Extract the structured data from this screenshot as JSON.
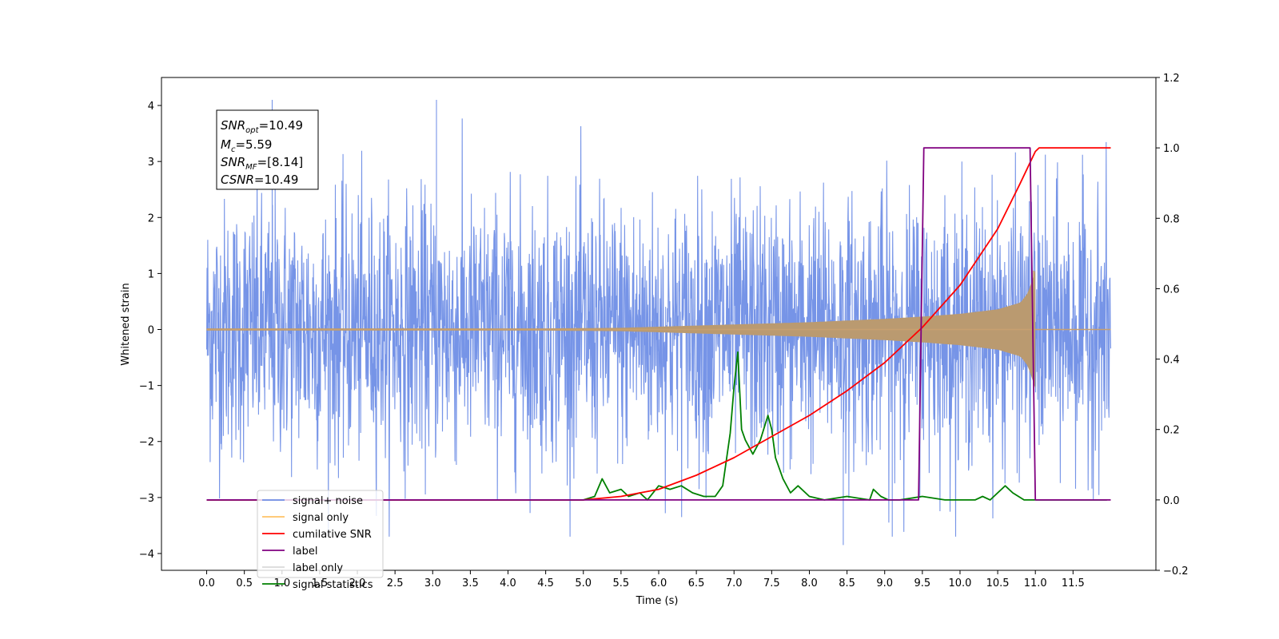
{
  "chart_data": {
    "type": "line",
    "title": "",
    "xlabel": "Time (s)",
    "ylabel_left": "Whitened strain",
    "ylabel_right": "",
    "xlim": [
      -0.6,
      12.6
    ],
    "ylim_left": [
      -4.3,
      4.5
    ],
    "ylim_right": [
      -0.2,
      1.2
    ],
    "x_ticks": [
      0.0,
      0.5,
      1.0,
      1.5,
      2.0,
      2.5,
      3.0,
      3.5,
      4.0,
      4.5,
      5.0,
      5.5,
      6.0,
      6.5,
      7.0,
      7.5,
      8.0,
      8.5,
      9.0,
      9.5,
      10.0,
      10.5,
      11.0,
      11.5
    ],
    "x_tick_labels": [
      "0.0",
      "0.5",
      "1.0",
      "1.5",
      "2.0",
      "2.5",
      "3.0",
      "3.5",
      "4.0",
      "4.5",
      "5.0",
      "5.5",
      "6.0",
      "6.5",
      "7.0",
      "7.5",
      "8.0",
      "8.5",
      "9.0",
      "9.5",
      "10.0",
      "10.5",
      "11.0",
      "11.5"
    ],
    "y_left_ticks": [
      4,
      3,
      2,
      1,
      0,
      -1,
      -2,
      -3,
      -4
    ],
    "y_left_tick_labels": [
      "4",
      "3",
      "2",
      "1",
      "0",
      "−1",
      "−2",
      "−3",
      "−4"
    ],
    "y_right_ticks": [
      1.2,
      1.0,
      0.8,
      0.6,
      0.4,
      0.2,
      0.0,
      -0.2
    ],
    "y_right_tick_labels": [
      "1.2",
      "1.0",
      "0.8",
      "0.6",
      "0.4",
      "0.2",
      "0.0",
      "−0.2"
    ],
    "grid": false,
    "legend_position": "lower-left",
    "legend": [
      {
        "label": "signal+ noise",
        "color": "#6f8ee6"
      },
      {
        "label": "signal only",
        "color": "#ffc266"
      },
      {
        "label": "cumilative SNR",
        "color": "#ff0000"
      },
      {
        "label": "label",
        "color": "#800080"
      },
      {
        "label": "label only",
        "color": "#d9d9d9"
      },
      {
        "label": "signal statistics",
        "color": "#008000"
      }
    ],
    "annotation": {
      "snr_opt_base": "SNR",
      "snr_opt_sub": "opt",
      "snr_opt_value": "=10.49",
      "mc_base": "M",
      "mc_sub": "c",
      "mc_value": "=5.59",
      "snr_mf_base": "SNR",
      "snr_mf_sub": "MF",
      "snr_mf_value": "=[8.14]",
      "csnr_base": "CSNR",
      "csnr_value": "=10.49"
    },
    "series": [
      {
        "name": "signal+ noise",
        "axis": "left",
        "color": "#6f8ee6",
        "style": "noise",
        "x_range": [
          0.0,
          12.0
        ],
        "envelope_typical": [
          -2.6,
          2.6
        ],
        "envelope_max": [
          -3.9,
          4.1
        ],
        "notable_peaks": [
          {
            "x": 0.87,
            "y": 4.1
          },
          {
            "x": 3.05,
            "y": 4.1
          },
          {
            "x": 8.45,
            "y": -3.85
          },
          {
            "x": 9.1,
            "y": -3.7
          }
        ]
      },
      {
        "name": "signal only",
        "axis": "left",
        "color": "#ffc266",
        "style": "chirp",
        "chirp_end": 11.0,
        "amplitude_points": {
          "x": [
            0.0,
            4.5,
            5.5,
            6.0,
            6.5,
            7.0,
            7.5,
            8.0,
            8.5,
            9.0,
            9.5,
            10.0,
            10.5,
            10.8,
            10.9,
            11.0
          ],
          "y": [
            0.02,
            0.02,
            0.03,
            0.05,
            0.07,
            0.09,
            0.11,
            0.13,
            0.16,
            0.19,
            0.23,
            0.28,
            0.36,
            0.48,
            0.65,
            1.05
          ]
        }
      },
      {
        "name": "cumilative SNR",
        "axis": "right",
        "color": "#ff0000",
        "x": [
          0.0,
          5.0,
          5.5,
          6.0,
          6.5,
          7.0,
          7.5,
          8.0,
          8.5,
          9.0,
          9.5,
          10.0,
          10.5,
          10.8,
          11.0,
          11.05,
          12.0
        ],
        "y": [
          0.0,
          0.0,
          0.01,
          0.03,
          0.07,
          0.12,
          0.18,
          0.24,
          0.31,
          0.39,
          0.49,
          0.61,
          0.77,
          0.9,
          0.99,
          1.0,
          1.0
        ]
      },
      {
        "name": "label",
        "axis": "right",
        "color": "#800080",
        "x": [
          0.0,
          9.45,
          9.52,
          10.93,
          11.0,
          12.0
        ],
        "y": [
          0.0,
          0.0,
          1.0,
          1.0,
          0.0,
          0.0
        ]
      },
      {
        "name": "signal statistics",
        "axis": "right",
        "color": "#008000",
        "x": [
          0.0,
          3.0,
          4.0,
          4.5,
          5.0,
          5.15,
          5.25,
          5.35,
          5.5,
          5.6,
          5.75,
          5.85,
          6.0,
          6.15,
          6.3,
          6.45,
          6.6,
          6.75,
          6.85,
          6.95,
          7.0,
          7.05,
          7.1,
          7.15,
          7.25,
          7.35,
          7.45,
          7.5,
          7.55,
          7.65,
          7.75,
          7.85,
          8.0,
          8.2,
          8.5,
          8.8,
          8.85,
          8.95,
          9.05,
          9.2,
          9.5,
          9.8,
          10.2,
          10.3,
          10.4,
          10.5,
          10.6,
          10.7,
          10.85,
          11.0,
          11.5,
          11.95
        ],
        "y": [
          0.0,
          0.0,
          0.0,
          0.0,
          0.0,
          0.01,
          0.06,
          0.02,
          0.03,
          0.01,
          0.02,
          0.0,
          0.04,
          0.03,
          0.04,
          0.02,
          0.01,
          0.01,
          0.04,
          0.19,
          0.32,
          0.42,
          0.2,
          0.17,
          0.13,
          0.17,
          0.24,
          0.2,
          0.12,
          0.06,
          0.02,
          0.04,
          0.01,
          0.0,
          0.01,
          0.0,
          0.03,
          0.01,
          0.0,
          0.0,
          0.01,
          0.0,
          0.0,
          0.01,
          0.0,
          0.02,
          0.04,
          0.02,
          0.0,
          0.0,
          0.0,
          0.0
        ]
      }
    ]
  }
}
